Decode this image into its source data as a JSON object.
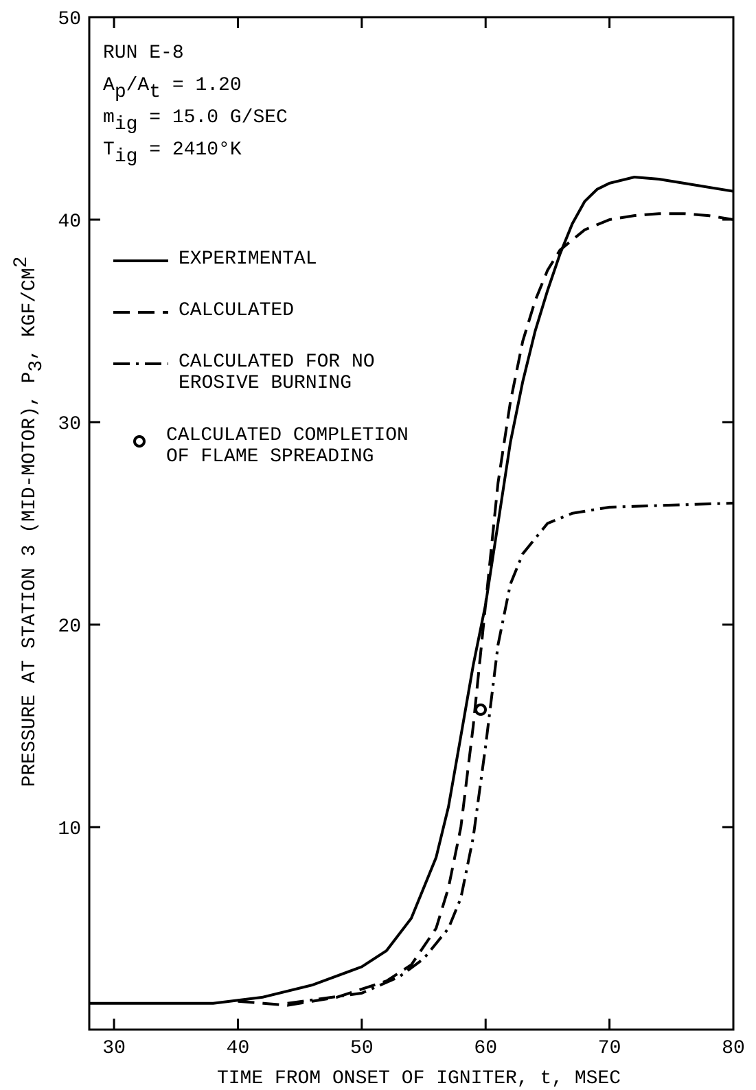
{
  "chart_data": {
    "type": "line",
    "xlabel": "TIME FROM ONSET OF IGNITER, t, MSEC",
    "ylabel": [
      {
        "text": "PRESSURE AT STATION 3 (MID-MOTOR), P"
      },
      {
        "text": "3",
        "shift": "sub"
      },
      {
        "text": ", KGF/CM"
      },
      {
        "text": "2",
        "shift": "super"
      }
    ],
    "annotations": [
      [
        {
          "text": "RUN E-8"
        }
      ],
      [
        {
          "text": "A"
        },
        {
          "text": "p",
          "shift": "sub"
        },
        {
          "text": "/A"
        },
        {
          "text": "t",
          "shift": "sub"
        },
        {
          "text": " = 1.20"
        }
      ],
      [
        {
          "text": "m"
        },
        {
          "text": "ig",
          "shift": "sub"
        },
        {
          "text": " = 15.0 G/SEC"
        }
      ],
      [
        {
          "text": "T"
        },
        {
          "text": "ig",
          "shift": "sub"
        },
        {
          "text": " = 2410°K"
        }
      ]
    ],
    "xlim": [
      28,
      80
    ],
    "ylim": [
      0,
      50
    ],
    "xticks": [
      30,
      40,
      50,
      60,
      70,
      80
    ],
    "yticks": [
      10,
      20,
      30,
      40,
      50
    ],
    "series": [
      {
        "name": "EXPERIMENTAL",
        "color": "#000000",
        "dash": "solid",
        "x": [
          28,
          38,
          42,
          46,
          50,
          52,
          54,
          56,
          57,
          58,
          59,
          60,
          61,
          62,
          63,
          64,
          65,
          66,
          67,
          68,
          69,
          70,
          72,
          74,
          76,
          78,
          80
        ],
        "values": [
          1.3,
          1.3,
          1.6,
          2.2,
          3.1,
          3.9,
          5.5,
          8.5,
          11,
          14.5,
          18,
          21,
          25,
          29,
          32,
          34.5,
          36.5,
          38.3,
          39.8,
          40.9,
          41.5,
          41.8,
          42.1,
          42.0,
          41.8,
          41.6,
          41.4
        ]
      },
      {
        "name": "CALCULATED",
        "color": "#000000",
        "dash": "dashed",
        "x": [
          40,
          44,
          48,
          52,
          54,
          56,
          57,
          58,
          59,
          60,
          61,
          62,
          63,
          64,
          65,
          66,
          68,
          70,
          72,
          74,
          76,
          78,
          80
        ],
        "values": [
          1.4,
          1.2,
          1.6,
          2.4,
          3.2,
          5,
          7,
          10,
          15,
          21,
          27,
          31,
          34,
          36,
          37.5,
          38.5,
          39.5,
          40,
          40.2,
          40.3,
          40.3,
          40.2,
          40.0
        ]
      },
      {
        "name": "CALCULATED FOR NO EROSIVE BURNING",
        "color": "#000000",
        "dash": "dash-dot",
        "x": [
          44,
          50,
          53,
          55,
          57,
          58,
          59,
          60,
          61,
          62,
          63,
          65,
          67,
          70,
          75,
          80
        ],
        "values": [
          1.3,
          1.8,
          2.6,
          3.5,
          5,
          6.5,
          9.5,
          14,
          19,
          22,
          23.5,
          25,
          25.5,
          25.8,
          25.9,
          26
        ]
      }
    ],
    "markers": [
      {
        "name": "CALCULATED COMPLETION OF FLAME SPREADING",
        "x": 59.6,
        "y": 15.8
      }
    ]
  }
}
